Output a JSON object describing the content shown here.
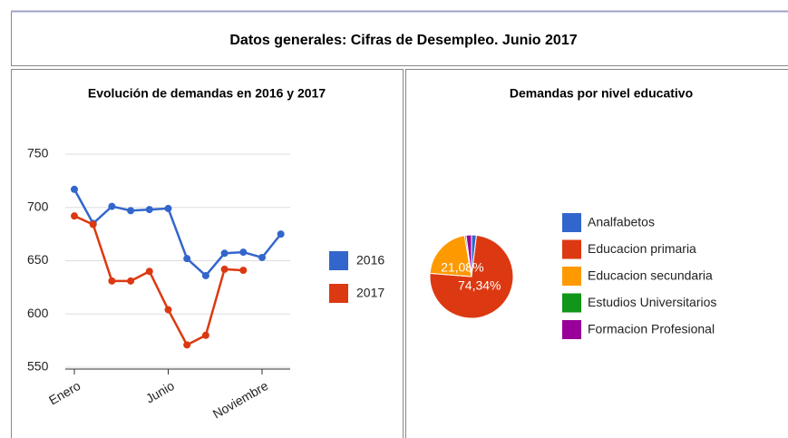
{
  "header": {
    "title": "Datos generales: Cifras de Desempleo. Junio 2017"
  },
  "chart_data": [
    {
      "type": "line",
      "title": "Evolución de demandas en 2016 y 2017",
      "categories": [
        "Enero",
        null,
        null,
        null,
        null,
        "Junio",
        null,
        null,
        null,
        null,
        "Noviembre",
        null
      ],
      "series": [
        {
          "name": "2016",
          "color": "#3366cc",
          "values": [
            717,
            685,
            701,
            697,
            698,
            699,
            652,
            636,
            657,
            658,
            653,
            675
          ]
        },
        {
          "name": "2017",
          "color": "#dc3912",
          "values": [
            692,
            684,
            631,
            631,
            640,
            604,
            571,
            580,
            642,
            641,
            null,
            null
          ]
        }
      ],
      "ylim": [
        550,
        750
      ],
      "yticks": [
        550,
        600,
        650,
        700,
        750
      ],
      "grid": true,
      "legend": "right"
    },
    {
      "type": "pie",
      "title": "Demandas por nivel educativo",
      "categories": [
        "Analfabetos",
        "Educacion primaria",
        "Educacion secundaria",
        "Estudios Universitarios",
        "Formacion Profesional"
      ],
      "values": [
        1.9,
        74.34,
        21.08,
        0.6,
        2.08
      ],
      "value_labels": [
        null,
        "74,34%",
        "21,08%",
        null,
        null
      ],
      "colors": [
        "#3366cc",
        "#dc3912",
        "#ff9900",
        "#109618",
        "#990099"
      ],
      "legend": "right"
    }
  ]
}
